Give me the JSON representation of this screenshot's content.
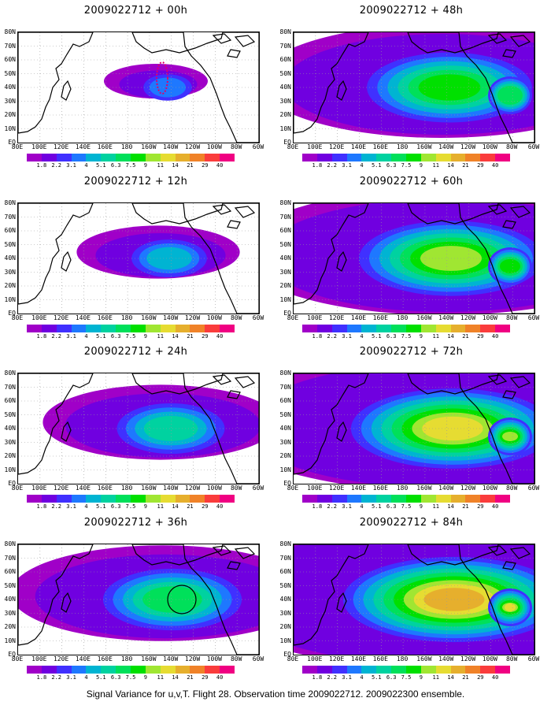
{
  "panels": [
    {
      "title": "2009022712 + 00h",
      "intensity": 0,
      "scale": 0.55
    },
    {
      "title": "2009022712 + 48h",
      "intensity": 4,
      "scale": 1.0
    },
    {
      "title": "2009022712 + 12h",
      "intensity": 1,
      "scale": 0.7
    },
    {
      "title": "2009022712 + 60h",
      "intensity": 5,
      "scale": 1.0
    },
    {
      "title": "2009022712 + 24h",
      "intensity": 2,
      "scale": 0.85
    },
    {
      "title": "2009022712 + 72h",
      "intensity": 6,
      "scale": 1.0
    },
    {
      "title": "2009022712 + 36h",
      "intensity": 3,
      "scale": 0.95
    },
    {
      "title": "2009022712 + 84h",
      "intensity": 7,
      "scale": 1.0
    }
  ],
  "lat_labels": [
    "80N",
    "70N",
    "60N",
    "50N",
    "40N",
    "30N",
    "20N",
    "10N",
    "EQ"
  ],
  "lon_labels": [
    "80E",
    "100E",
    "120E",
    "140E",
    "160E",
    "180",
    "160W",
    "140W",
    "120W",
    "100W",
    "80W",
    "60W"
  ],
  "colorbar": {
    "labels": [
      "1.8",
      "2.2",
      "3.1",
      "4",
      "5.1",
      "6.3",
      "7.5",
      "9",
      "11",
      "14",
      "21",
      "29",
      "40"
    ],
    "colors": [
      "#a000c8",
      "#7000e0",
      "#4030ff",
      "#1e78ff",
      "#00b4d2",
      "#00d2a0",
      "#00e05a",
      "#00e000",
      "#a0e632",
      "#e6dc32",
      "#e6af2d",
      "#f08228",
      "#fa3c3c",
      "#f00082"
    ]
  },
  "caption": "Signal Variance for u,v,T. Flight 28. Observation time 2009022712. 2009022300 ensemble."
}
